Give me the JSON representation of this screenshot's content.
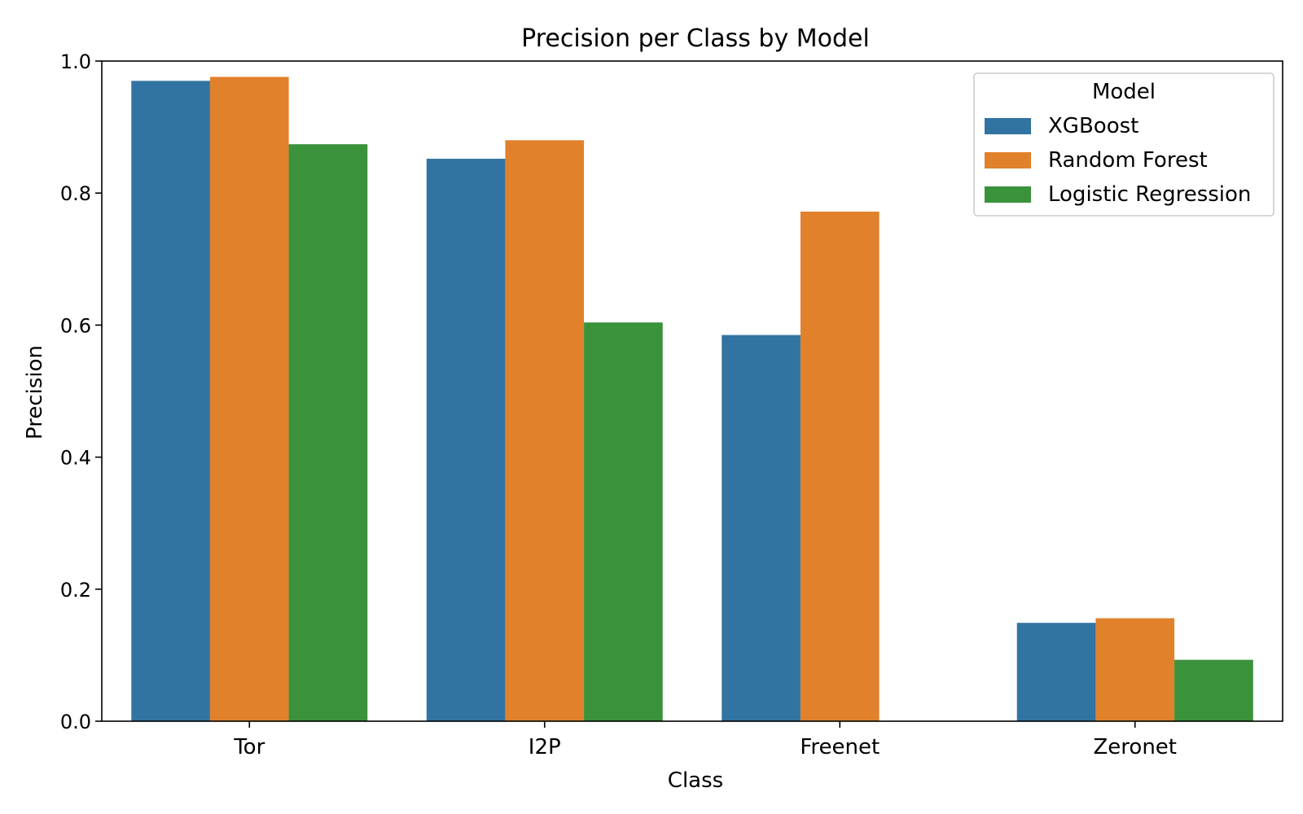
{
  "chart_data": {
    "type": "bar",
    "title": "Precision per Class by Model",
    "xlabel": "Class",
    "ylabel": "Precision",
    "categories": [
      "Tor",
      "I2P",
      "Freenet",
      "Zeronet"
    ],
    "series": [
      {
        "name": "XGBoost",
        "color": "#3274a1",
        "values": [
          0.97,
          0.852,
          0.585,
          0.149
        ]
      },
      {
        "name": "Random Forest",
        "color": "#e1812c",
        "values": [
          0.976,
          0.88,
          0.772,
          0.156
        ]
      },
      {
        "name": "Logistic Regression",
        "color": "#3a923a",
        "values": [
          0.874,
          0.604,
          0.0,
          0.093
        ]
      }
    ],
    "ylim": [
      0,
      1.0
    ],
    "yticks": [
      "0.0",
      "0.2",
      "0.4",
      "0.6",
      "0.8",
      "1.0"
    ],
    "grid": false,
    "legend": {
      "title": "Model",
      "position": "top-right"
    }
  }
}
